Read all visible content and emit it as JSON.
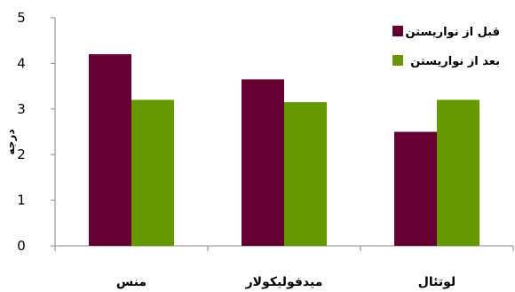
{
  "chart_data": {
    "type": "bar",
    "categories": [
      "منس",
      "میدفولیکولار",
      "لوتئال"
    ],
    "series": [
      {
        "name": "قبل از نواریستن",
        "values": [
          4.2,
          3.65,
          2.5
        ],
        "color": "#660033"
      },
      {
        "name": "بعد از نواریستن",
        "values": [
          3.2,
          3.15,
          3.2
        ],
        "color": "#669900"
      }
    ],
    "yticks": [
      "0",
      "1",
      "2",
      "3",
      "4",
      "5"
    ],
    "ylim": [
      0,
      5
    ],
    "ylabel": "درجه",
    "xlabel": "",
    "title": "",
    "grid": false,
    "legend_position": "top-right"
  }
}
